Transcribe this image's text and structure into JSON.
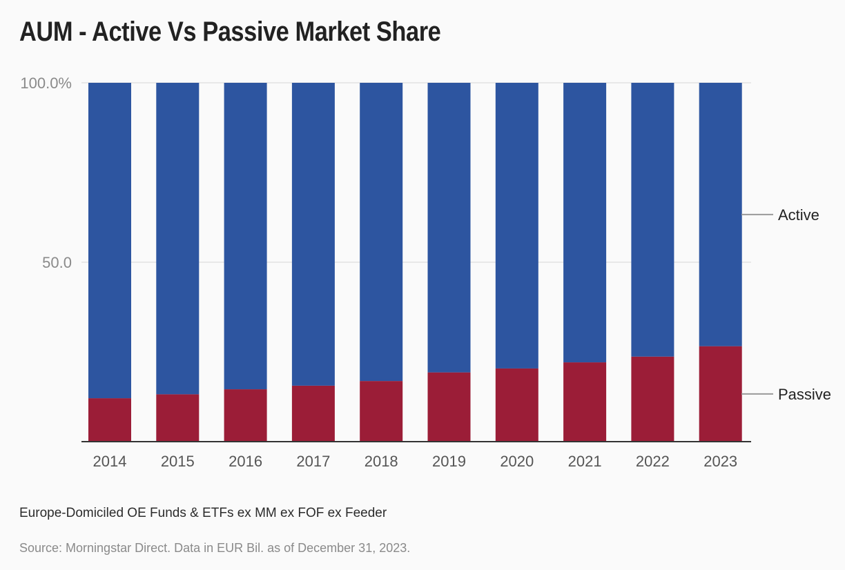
{
  "chart_data": {
    "type": "bar",
    "stacked": true,
    "title": "AUM - Active Vs Passive Market Share",
    "categories": [
      "2014",
      "2015",
      "2016",
      "2017",
      "2018",
      "2019",
      "2020",
      "2021",
      "2022",
      "2023"
    ],
    "series": [
      {
        "name": "Passive",
        "color": "#9b1d37",
        "values": [
          12.1,
          13.2,
          14.6,
          15.6,
          16.9,
          19.3,
          20.4,
          22.1,
          23.7,
          26.6
        ]
      },
      {
        "name": "Active",
        "color": "#2d55a0",
        "values": [
          87.9,
          86.8,
          85.4,
          84.4,
          83.1,
          80.7,
          79.6,
          77.9,
          76.3,
          73.4
        ]
      }
    ],
    "y_ticks": [
      {
        "value": 100,
        "label": "100.0%"
      },
      {
        "value": 50,
        "label": "50.0"
      }
    ],
    "ylim": [
      0,
      100
    ],
    "grid": true,
    "legend_placement": "right, inline labels",
    "subtitle": "Europe-Domiciled OE Funds & ETFs ex MM ex FOF ex Feeder",
    "source": "Source: Morningstar Direct. Data in EUR Bil. as of December 31, 2023."
  }
}
